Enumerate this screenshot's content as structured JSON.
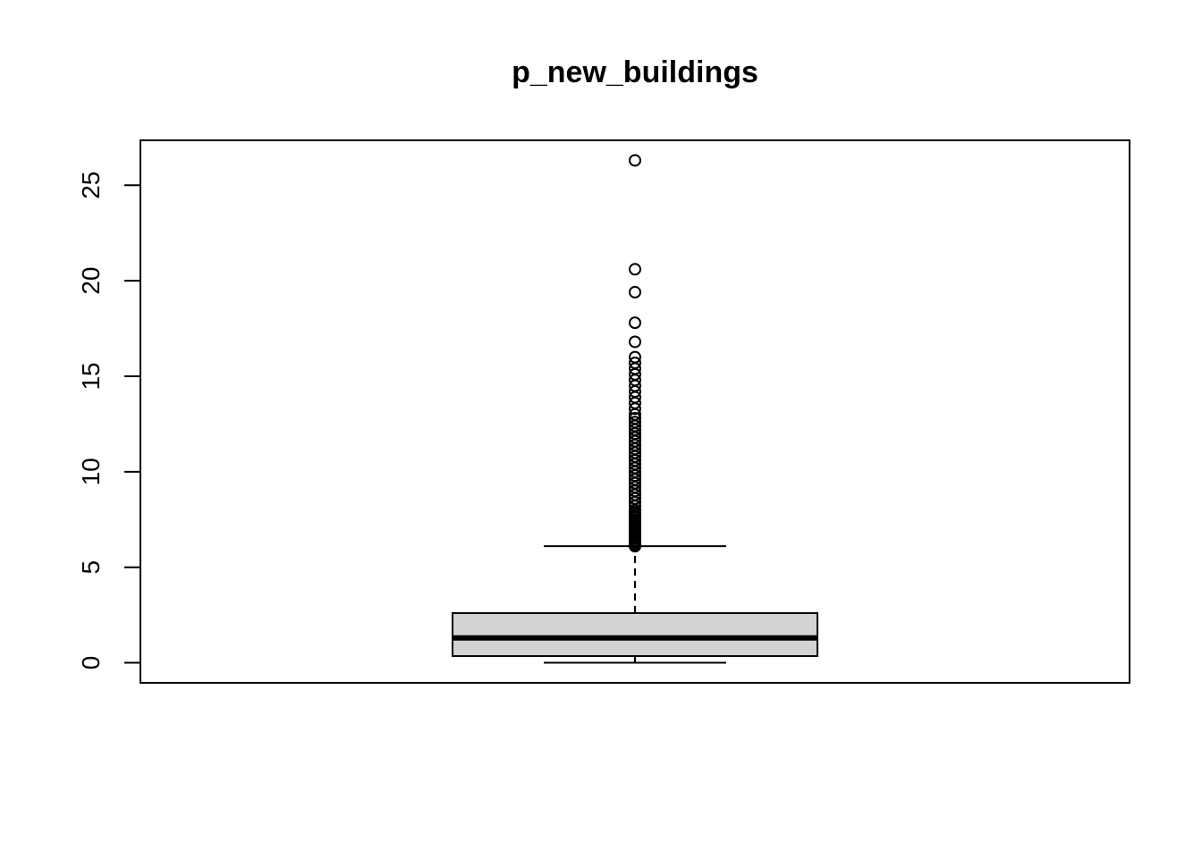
{
  "chart_data": {
    "type": "boxplot",
    "title": "p_new_buildings",
    "xlabel": "",
    "ylabel": "",
    "ylim": [
      -1.05,
      27.35
    ],
    "yticks": [
      0,
      5,
      10,
      15,
      20,
      25
    ],
    "grid": false,
    "box": {
      "min": 0.0,
      "q1": 0.35,
      "median": 1.3,
      "q3": 2.6,
      "whisker_low": 0.0,
      "whisker_high": 6.1
    },
    "outliers": [
      6.1,
      6.15,
      6.2,
      6.3,
      6.4,
      6.5,
      6.6,
      6.7,
      6.8,
      6.9,
      7.0,
      7.1,
      7.2,
      7.3,
      7.4,
      7.5,
      7.6,
      7.7,
      7.8,
      7.9,
      8.0,
      8.2,
      8.4,
      8.6,
      8.8,
      9.0,
      9.2,
      9.4,
      9.6,
      9.8,
      10.0,
      10.2,
      10.4,
      10.6,
      10.8,
      11.0,
      11.2,
      11.4,
      11.6,
      11.8,
      12.0,
      12.2,
      12.4,
      12.6,
      12.8,
      13.0,
      13.3,
      13.6,
      13.9,
      14.2,
      14.5,
      14.8,
      15.1,
      15.4,
      15.7,
      16.0,
      16.8,
      17.8,
      19.4,
      20.6,
      26.3
    ],
    "colors": {
      "box_fill": "#d3d3d3",
      "stroke": "#000000"
    }
  }
}
